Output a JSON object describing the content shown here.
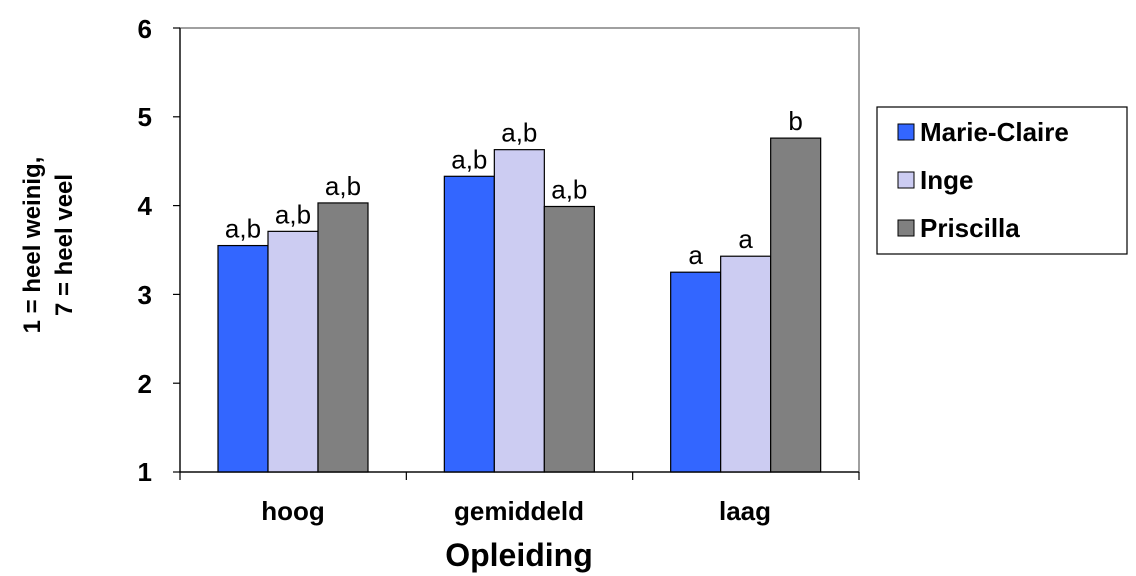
{
  "chart_data": {
    "type": "bar",
    "categories": [
      "hoog",
      "gemiddeld",
      "laag"
    ],
    "series": [
      {
        "name": "Marie-Claire",
        "values": [
          3.55,
          4.33,
          3.25
        ],
        "labels": [
          "a,b",
          "a,b",
          "a"
        ],
        "color": "#3366ff"
      },
      {
        "name": "Inge",
        "values": [
          3.71,
          4.63,
          3.43
        ],
        "labels": [
          "a,b",
          "a,b",
          "a"
        ],
        "color": "#ccccf2"
      },
      {
        "name": "Priscilla",
        "values": [
          4.03,
          3.99,
          4.76
        ],
        "labels": [
          "a,b",
          "a,b",
          "b"
        ],
        "color": "#808080"
      }
    ],
    "xlabel": "Opleiding",
    "ylabel_lines": [
      "1 = heel weinig,",
      "7 = heel veel"
    ],
    "ylim": [
      1,
      6
    ],
    "yticks": [
      "1",
      "2",
      "3",
      "4",
      "5",
      "6"
    ],
    "grid": false,
    "legend_position": "right"
  }
}
